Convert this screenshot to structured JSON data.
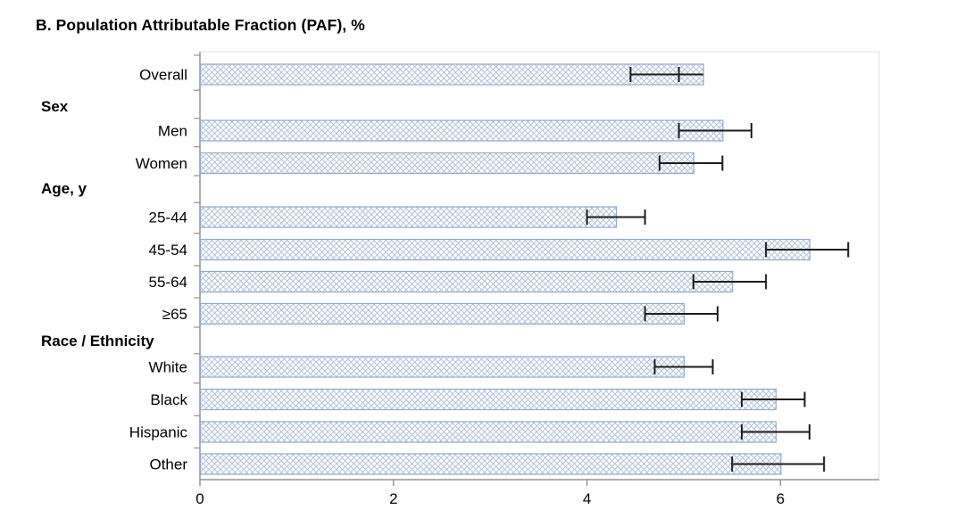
{
  "title": "B. Population Attributable Fraction (PAF), %",
  "chart_data": {
    "type": "bar",
    "orientation": "horizontal",
    "title": "B. Population Attributable Fraction (PAF), %",
    "xlabel": "",
    "ylabel": "",
    "xlim": [
      0,
      7
    ],
    "x_ticks": [
      0,
      2,
      4,
      6
    ],
    "grid": false,
    "legend": "none",
    "bar_style": "crosshatch",
    "groups": [
      {
        "header": "",
        "rows": [
          {
            "label": "Overall",
            "value": 5.2,
            "ci": [
              4.45,
              4.95
            ]
          }
        ]
      },
      {
        "header": "Sex",
        "rows": [
          {
            "label": "Men",
            "value": 5.4,
            "ci": [
              4.95,
              5.7
            ]
          },
          {
            "label": "Women",
            "value": 5.1,
            "ci": [
              4.75,
              5.4
            ]
          }
        ]
      },
      {
        "header": "Age, y",
        "rows": [
          {
            "label": "25-44",
            "value": 4.3,
            "ci": [
              4.0,
              4.6
            ]
          },
          {
            "label": "45-54",
            "value": 6.3,
            "ci": [
              5.85,
              6.7
            ]
          },
          {
            "label": "55-64",
            "value": 5.5,
            "ci": [
              5.1,
              5.85
            ]
          },
          {
            "label": "≥65",
            "value": 5.0,
            "ci": [
              4.6,
              5.35
            ]
          }
        ]
      },
      {
        "header": "Race / Ethnicity",
        "rows": [
          {
            "label": "White",
            "value": 5.0,
            "ci": [
              4.7,
              5.3
            ]
          },
          {
            "label": "Black",
            "value": 5.95,
            "ci": [
              5.6,
              6.25
            ]
          },
          {
            "label": "Hispanic",
            "value": 5.95,
            "ci": [
              5.6,
              6.3
            ]
          },
          {
            "label": "Other",
            "value": 6.0,
            "ci": [
              5.5,
              6.45
            ]
          }
        ]
      }
    ],
    "colors": {
      "bar_border": "#92abca",
      "bar_pattern_line": "#b7c6da",
      "bar_fill_base": "#ffffff",
      "error_bar": "#1c1c1c",
      "axis": "#949494",
      "frame": "#e2e2e2",
      "text": "#000000"
    }
  }
}
